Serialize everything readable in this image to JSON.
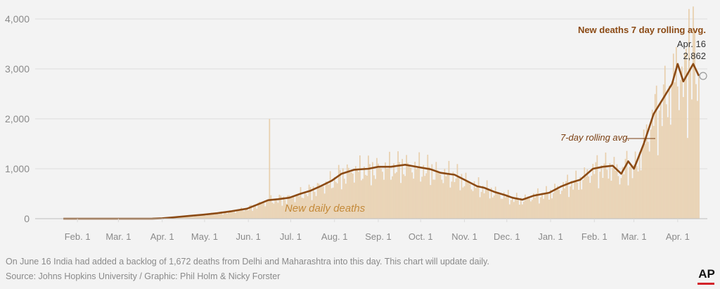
{
  "chart_data": {
    "type": "bar",
    "y_ticks": [
      "0",
      "1,000",
      "2,000",
      "3,000",
      "4,000"
    ],
    "ylim": [
      0,
      4000
    ],
    "x_ticks": [
      "Feb. 1",
      "Mar. 1",
      "Apr. 1",
      "May. 1",
      "Jun. 1",
      "Jul. 1",
      "Aug. 1",
      "Sep. 1",
      "Oct. 1",
      "Nov. 1",
      "Dec. 1",
      "Jan. 1",
      "Feb. 1",
      "Mar. 1",
      "Apr. 1"
    ],
    "date_range": [
      "2020-01-22",
      "2021-04-16"
    ],
    "grid": true,
    "series": [
      {
        "name": "New daily deaths",
        "kind": "bar",
        "color": "#e8cfad",
        "description": "daily values, approx. — read from bar heights"
      },
      {
        "name": "7-day rolling avg.",
        "kind": "line",
        "color": "#8b4a14",
        "points": [
          [
            "2020-01-22",
            0
          ],
          [
            "2020-03-10",
            0
          ],
          [
            "2020-03-25",
            1
          ],
          [
            "2020-04-01",
            8
          ],
          [
            "2020-04-10",
            30
          ],
          [
            "2020-04-20",
            55
          ],
          [
            "2020-04-30",
            80
          ],
          [
            "2020-05-10",
            110
          ],
          [
            "2020-05-20",
            150
          ],
          [
            "2020-05-31",
            200
          ],
          [
            "2020-06-08",
            290
          ],
          [
            "2020-06-15",
            370
          ],
          [
            "2020-06-22",
            390
          ],
          [
            "2020-06-30",
            420
          ],
          [
            "2020-07-08",
            500
          ],
          [
            "2020-07-15",
            560
          ],
          [
            "2020-07-22",
            650
          ],
          [
            "2020-07-30",
            760
          ],
          [
            "2020-08-06",
            900
          ],
          [
            "2020-08-15",
            980
          ],
          [
            "2020-08-25",
            1000
          ],
          [
            "2020-09-01",
            1040
          ],
          [
            "2020-09-10",
            1040
          ],
          [
            "2020-09-15",
            1060
          ],
          [
            "2020-09-20",
            1080
          ],
          [
            "2020-09-30",
            1030
          ],
          [
            "2020-10-08",
            990
          ],
          [
            "2020-10-15",
            920
          ],
          [
            "2020-10-25",
            880
          ],
          [
            "2020-11-01",
            780
          ],
          [
            "2020-11-10",
            650
          ],
          [
            "2020-11-15",
            620
          ],
          [
            "2020-11-22",
            540
          ],
          [
            "2020-11-30",
            470
          ],
          [
            "2020-12-05",
            420
          ],
          [
            "2020-12-12",
            380
          ],
          [
            "2020-12-20",
            460
          ],
          [
            "2020-12-31",
            520
          ],
          [
            "2021-01-08",
            640
          ],
          [
            "2021-01-15",
            720
          ],
          [
            "2021-01-22",
            780
          ],
          [
            "2021-01-31",
            1000
          ],
          [
            "2021-02-07",
            1040
          ],
          [
            "2021-02-14",
            1060
          ],
          [
            "2021-02-20",
            900
          ],
          [
            "2021-02-25",
            1150
          ],
          [
            "2021-03-01",
            1000
          ],
          [
            "2021-03-08",
            1500
          ],
          [
            "2021-03-15",
            2100
          ],
          [
            "2021-03-22",
            2420
          ],
          [
            "2021-03-28",
            2700
          ],
          [
            "2021-04-01",
            3100
          ],
          [
            "2021-04-05",
            2750
          ],
          [
            "2021-04-09",
            2950
          ],
          [
            "2021-04-12",
            3100
          ],
          [
            "2021-04-16",
            2862
          ]
        ]
      }
    ],
    "annotation": {
      "title": "New deaths 7 day rolling avg.",
      "date": "Apr. 16",
      "value": "2,862"
    },
    "inline_labels": {
      "bars": "New daily deaths",
      "line": "7-day rolling avg."
    }
  },
  "footnotes": {
    "note": "On June 16 India had added a backlog of 1,672 deaths from Delhi and Maharashtra into this day. This chart will update daily.",
    "source": "Source: Johns Hopkins University / Graphic: Phil Holm & Nicky Forster"
  },
  "logo": {
    "text": "AP",
    "accent": "#d2232a"
  }
}
